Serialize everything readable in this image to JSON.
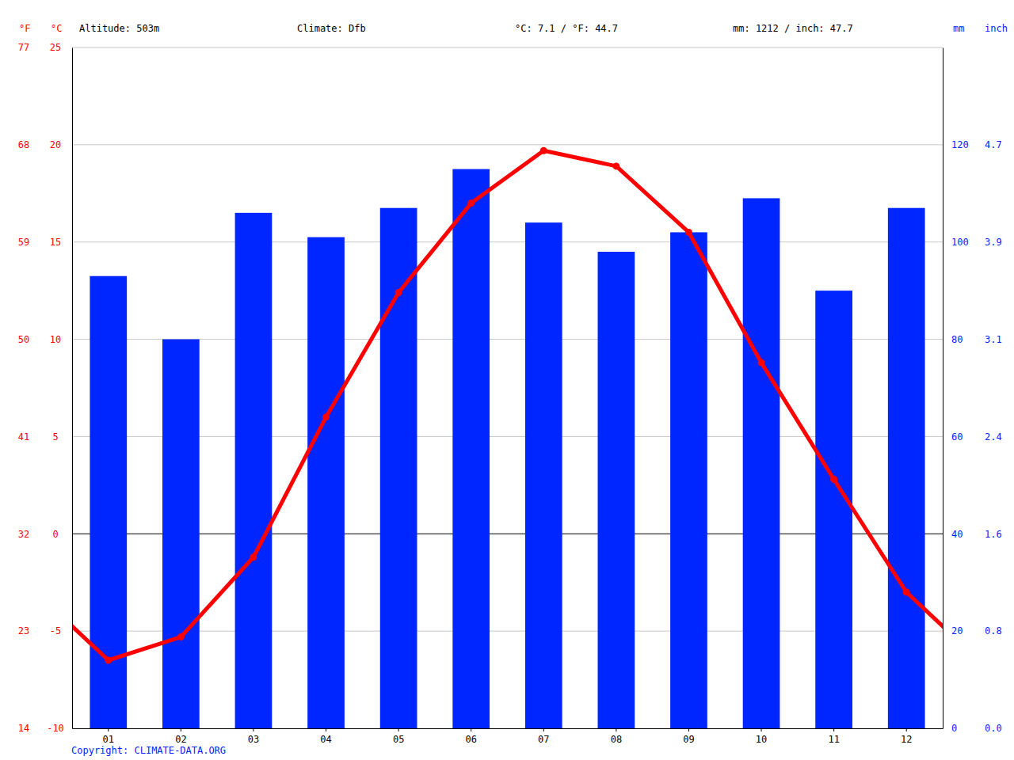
{
  "chart_data": {
    "type": "bar",
    "categories": [
      "01",
      "02",
      "03",
      "04",
      "05",
      "06",
      "07",
      "08",
      "09",
      "10",
      "11",
      "12"
    ],
    "annotations": [
      "Altitude: 503m",
      "Climate: Dfb",
      "°C: 7.1 / °F: 44.7",
      "mm: 1212 / inch: 47.7"
    ],
    "source": "Copyright: CLIMATE-DATA.ORG",
    "y_label": "°C",
    "y2_label": "mm",
    "y3_label": "°F",
    "y4_label": "inch",
    "ylim": [
      -10,
      25
    ],
    "yticks": [
      -10,
      -5,
      0,
      5,
      10,
      15,
      20,
      25
    ],
    "y2lim": [
      0,
      140
    ],
    "y2ticks": [
      0,
      20,
      40,
      60,
      80,
      100,
      120
    ],
    "y3lim": [
      14,
      77
    ],
    "y3ticks": [
      14,
      23,
      32,
      41,
      50,
      59,
      68,
      77
    ],
    "y4lim": [
      0,
      5.5118
    ],
    "y4ticks": [
      {
        "value": 0,
        "label": "0.0"
      },
      {
        "value": 0.7874,
        "label": "0.8"
      },
      {
        "value": 1.5748,
        "label": "1.6"
      },
      {
        "value": 2.3622,
        "label": "2.4"
      },
      {
        "value": 3.1496,
        "label": "3.1"
      },
      {
        "value": 3.937,
        "label": "3.9"
      },
      {
        "value": 4.7244,
        "label": "4.7"
      }
    ],
    "grid": true,
    "series": [
      {
        "type": "bar",
        "color": "#0026ff",
        "axis": "y2",
        "values": [
          93,
          80,
          106,
          101,
          107,
          115,
          104,
          98,
          102,
          109,
          90,
          107
        ]
      },
      {
        "type": "line",
        "color": "#ff0000",
        "marker": "circle",
        "values": [
          -6.5,
          -5.3,
          -1.2,
          6.0,
          12.4,
          17.0,
          19.7,
          18.9,
          15.5,
          8.8,
          2.8,
          -3.0
        ]
      }
    ]
  }
}
